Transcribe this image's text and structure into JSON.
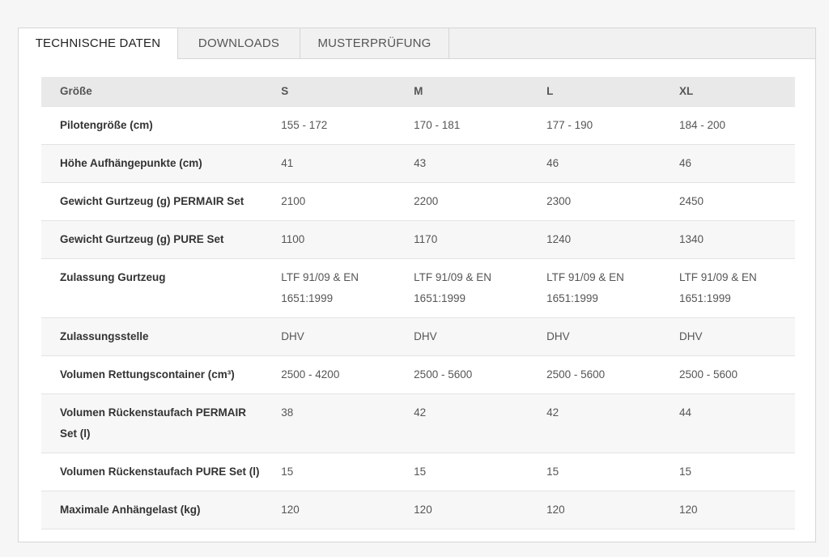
{
  "tabs": [
    {
      "label": "TECHNISCHE DATEN",
      "active": true
    },
    {
      "label": "DOWNLOADS",
      "active": false
    },
    {
      "label": "MUSTERPRÜFUNG",
      "active": false
    }
  ],
  "table": {
    "headers": [
      "Größe",
      "S",
      "M",
      "L",
      "XL"
    ],
    "rows": [
      {
        "label": "Pilotengröße (cm)",
        "values": [
          "155 - 172",
          "170 - 181",
          "177 - 190",
          "184 - 200"
        ]
      },
      {
        "label": "Höhe Aufhängepunkte (cm)",
        "values": [
          "41",
          "43",
          "46",
          "46"
        ]
      },
      {
        "label": "Gewicht Gurtzeug (g) PERMAIR Set",
        "values": [
          "2100",
          "2200",
          "2300",
          "2450"
        ]
      },
      {
        "label": "Gewicht Gurtzeug (g) PURE Set",
        "values": [
          "1100",
          "1170",
          "1240",
          "1340"
        ]
      },
      {
        "label": "Zulassung Gurtzeug",
        "values": [
          "LTF 91/09 & EN 1651:1999",
          "LTF 91/09 & EN 1651:1999",
          "LTF 91/09 & EN 1651:1999",
          "LTF 91/09 & EN 1651:1999"
        ]
      },
      {
        "label": "Zulassungsstelle",
        "values": [
          "DHV",
          "DHV",
          "DHV",
          "DHV"
        ]
      },
      {
        "label": "Volumen Rettungscontainer (cm³)",
        "values": [
          "2500 - 4200",
          "2500 - 5600",
          "2500 - 5600",
          "2500 - 5600"
        ]
      },
      {
        "label": "Volumen Rückenstaufach PERMAIR Set (l)",
        "values": [
          "38",
          "42",
          "42",
          "44"
        ]
      },
      {
        "label": "Volumen Rückenstaufach PURE Set (l)",
        "values": [
          "15",
          "15",
          "15",
          "15"
        ]
      },
      {
        "label": "Maximale Anhängelast (kg)",
        "values": [
          "120",
          "120",
          "120",
          "120"
        ]
      }
    ]
  }
}
